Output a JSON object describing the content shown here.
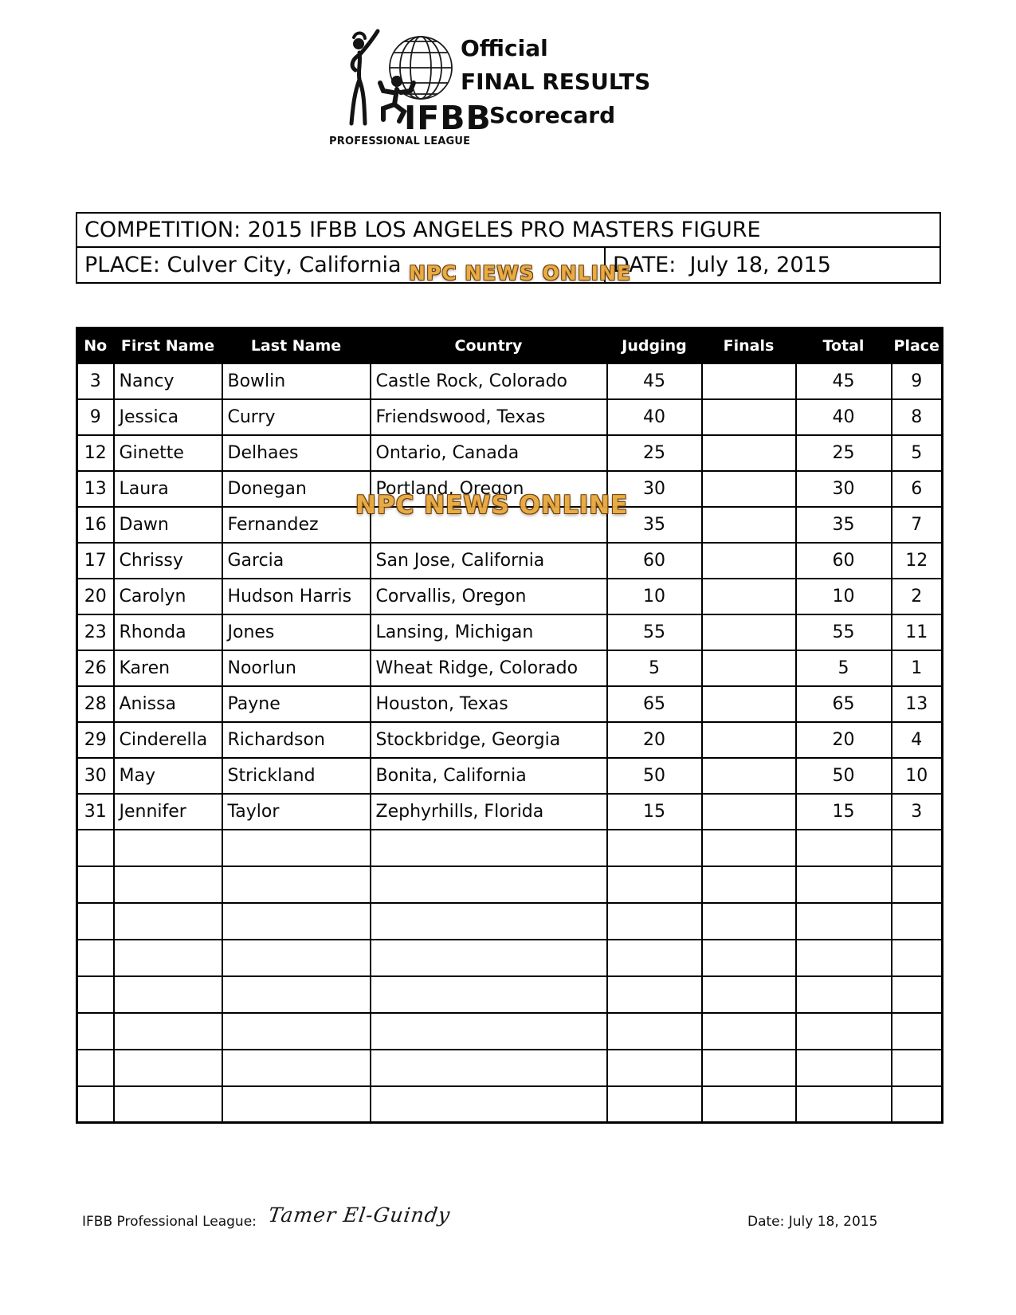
{
  "header": {
    "logo": {
      "brand": "IFBB",
      "tagline": "PROFESSIONAL LEAGUE"
    },
    "title_line1": "Official",
    "title_line2": "FINAL RESULTS",
    "title_line3": "Scorecard"
  },
  "watermark": {
    "text": "NPC NEWS ONLINE",
    "color": "#E7A93E"
  },
  "info_box": {
    "competition": "COMPETITION: 2015 IFBB LOS ANGELES PRO MASTERS FIGURE",
    "place": "PLACE: Culver City, California",
    "date": "DATE:  July 18, 2015"
  },
  "results_table": {
    "columns": [
      "No",
      "First Name",
      "Last Name",
      "Country",
      "Judging",
      "Finals",
      "Total",
      "Place"
    ],
    "fields": [
      "no",
      "first",
      "last",
      "country",
      "judging",
      "finals",
      "total",
      "place"
    ],
    "rows": [
      {
        "no": "3",
        "first": "Nancy",
        "last": "Bowlin",
        "country": "Castle Rock, Colorado",
        "judging": "45",
        "finals": "",
        "total": "45",
        "place": "9"
      },
      {
        "no": "9",
        "first": "Jessica",
        "last": "Curry",
        "country": "Friendswood, Texas",
        "judging": "40",
        "finals": "",
        "total": "40",
        "place": "8"
      },
      {
        "no": "12",
        "first": "Ginette",
        "last": "Delhaes",
        "country": "Ontario, Canada",
        "judging": "25",
        "finals": "",
        "total": "25",
        "place": "5"
      },
      {
        "no": "13",
        "first": "Laura",
        "last": "Donegan",
        "country": "Portland, Oregon",
        "judging": "30",
        "finals": "",
        "total": "30",
        "place": "6"
      },
      {
        "no": "16",
        "first": "Dawn",
        "last": "Fernandez",
        "country": "",
        "country_hidden_by_watermark": true,
        "judging": "35",
        "finals": "",
        "total": "35",
        "place": "7"
      },
      {
        "no": "17",
        "first": "Chrissy",
        "last": "Garcia",
        "country": "San Jose, California",
        "judging": "60",
        "finals": "",
        "total": "60",
        "place": "12"
      },
      {
        "no": "20",
        "first": "Carolyn",
        "last": "Hudson Harris",
        "country": "Corvallis, Oregon",
        "judging": "10",
        "finals": "",
        "total": "10",
        "place": "2"
      },
      {
        "no": "23",
        "first": "Rhonda",
        "last": "Jones",
        "country": "Lansing, Michigan",
        "judging": "55",
        "finals": "",
        "total": "55",
        "place": "11"
      },
      {
        "no": "26",
        "first": "Karen",
        "last": "Noorlun",
        "country": "Wheat Ridge, Colorado",
        "judging": "5",
        "finals": "",
        "total": "5",
        "place": "1"
      },
      {
        "no": "28",
        "first": "Anissa",
        "last": "Payne",
        "country": "Houston, Texas",
        "judging": "65",
        "finals": "",
        "total": "65",
        "place": "13"
      },
      {
        "no": "29",
        "first": "Cinderella",
        "last": "Richardson",
        "country": "Stockbridge, Georgia",
        "judging": "20",
        "finals": "",
        "total": "20",
        "place": "4"
      },
      {
        "no": "30",
        "first": "May",
        "last": "Strickland",
        "country": "Bonita, California",
        "judging": "50",
        "finals": "",
        "total": "50",
        "place": "10"
      },
      {
        "no": "31",
        "first": "Jennifer",
        "last": "Taylor",
        "country": "Zephyrhills, Florida",
        "judging": "15",
        "finals": "",
        "total": "15",
        "place": "3"
      }
    ],
    "empty_row_count": 8
  },
  "footer": {
    "league_label": "IFBB Professional League:",
    "signature": "Tamer El-Guindy",
    "date": "Date: July 18, 2015"
  }
}
